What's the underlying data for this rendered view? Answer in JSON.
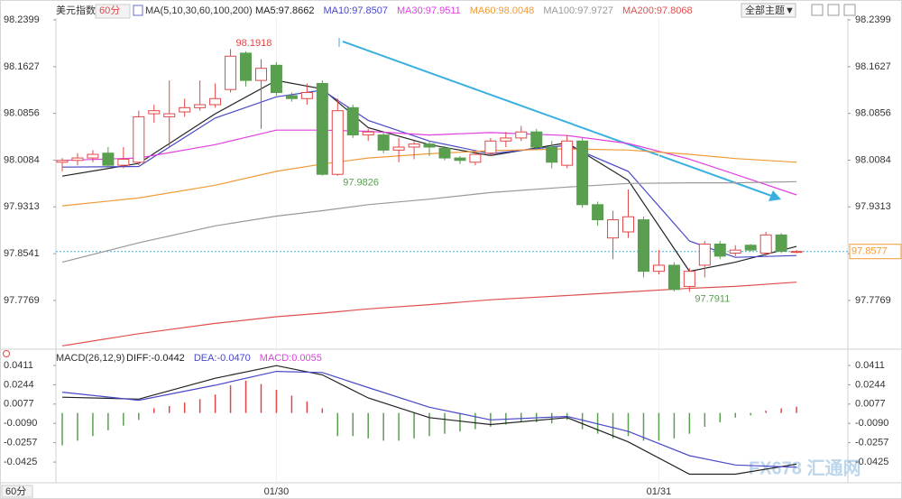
{
  "header": {
    "symbol": "美元指数",
    "period": "60分",
    "theme_button": "全部主题▼"
  },
  "footer_period": "60分",
  "watermark": "FX678 汇通网",
  "chart_data": [
    {
      "type": "candlestick",
      "ma_title": "MA(5,10,30,60,100,200)",
      "categories": [
        null,
        null,
        null,
        null,
        null,
        null,
        null,
        null,
        null,
        null,
        null,
        null,
        null,
        null,
        "01/30",
        null,
        null,
        null,
        null,
        null,
        null,
        null,
        null,
        null,
        null,
        null,
        null,
        null,
        null,
        null,
        null,
        null,
        null,
        null,
        null,
        null,
        null,
        null,
        null,
        "01/31",
        null,
        null,
        null,
        null,
        null,
        null,
        null,
        null,
        null
      ],
      "open": [
        98.005,
        98.008,
        98.012,
        98.02,
        98.0,
        98.005,
        98.085,
        98.08,
        98.088,
        98.095,
        98.1,
        98.125,
        98.185,
        98.14,
        98.165,
        98.115,
        98.11,
        98.135,
        97.985,
        98.095,
        98.05,
        98.05,
        98.025,
        98.03,
        98.035,
        98.028,
        98.012,
        98.005,
        98.02,
        98.04,
        98.045,
        98.055,
        98.03,
        98.0,
        98.04,
        97.935,
        97.88,
        97.89,
        97.91,
        97.825,
        97.835,
        97.8,
        97.835,
        97.87,
        97.855,
        97.868,
        97.855,
        97.885,
        97.857
      ],
      "high": [
        98.012,
        98.02,
        98.025,
        98.03,
        98.03,
        98.09,
        98.1,
        98.14,
        98.11,
        98.14,
        98.135,
        98.1918,
        98.188,
        98.175,
        98.17,
        98.12,
        98.135,
        98.14,
        98.11,
        98.1,
        98.06,
        98.055,
        98.045,
        98.04,
        98.04,
        98.032,
        98.015,
        98.022,
        98.045,
        98.055,
        98.065,
        98.06,
        98.04,
        98.05,
        98.045,
        97.94,
        97.925,
        97.96,
        97.915,
        97.86,
        97.84,
        97.83,
        97.875,
        97.875,
        97.868,
        97.87,
        97.89,
        97.888,
        97.86
      ],
      "low": [
        97.99,
        98.0,
        98.005,
        97.995,
        97.995,
        98.0,
        98.07,
        98.03,
        98.08,
        98.09,
        98.095,
        98.12,
        98.13,
        98.06,
        98.115,
        98.105,
        98.1,
        97.983,
        97.9826,
        98.045,
        98.04,
        98.02,
        98.005,
        98.01,
        98.015,
        98.008,
        98.002,
        98.0,
        98.015,
        98.03,
        98.04,
        98.025,
        97.995,
        97.995,
        97.93,
        97.9,
        97.845,
        97.88,
        97.815,
        97.82,
        97.792,
        97.7911,
        97.815,
        97.845,
        97.85,
        97.858,
        97.85,
        97.855,
        97.855
      ],
      "close": [
        98.008,
        98.012,
        98.018,
        98.0,
        98.01,
        98.08,
        98.09,
        98.085,
        98.095,
        98.1,
        98.11,
        98.18,
        98.14,
        98.16,
        98.12,
        98.11,
        98.12,
        97.985,
        98.09,
        98.05,
        98.055,
        98.025,
        98.03,
        98.035,
        98.03,
        98.012,
        98.008,
        98.018,
        98.04,
        98.045,
        98.055,
        98.03,
        98.005,
        98.04,
        97.935,
        97.91,
        97.91,
        97.915,
        97.825,
        97.835,
        97.795,
        97.825,
        97.87,
        97.85,
        97.86,
        97.86,
        97.885,
        97.858,
        97.8577
      ],
      "up_color": "#e04848",
      "down_color": "#5a9e50",
      "ylim": [
        97.6994,
        98.2608
      ],
      "yticks": [
        98.2399,
        98.1627,
        98.0856,
        98.0084,
        97.9313,
        97.8541,
        97.7769
      ],
      "series": [
        {
          "name": "MA5:97.8662",
          "color": "#222222",
          "x": [
            0,
            5,
            10,
            14,
            17,
            20,
            24,
            28,
            33,
            37,
            41,
            44,
            48
          ],
          "values": [
            97.982,
            98.003,
            98.085,
            98.14,
            98.126,
            98.062,
            98.034,
            98.016,
            98.037,
            97.975,
            97.825,
            97.84,
            97.866
          ]
        },
        {
          "name": "MA10:97.8507",
          "color": "#4848c8",
          "x": [
            0,
            5,
            10,
            14,
            17,
            20,
            24,
            28,
            33,
            37,
            41,
            44,
            48
          ],
          "values": [
            97.997,
            97.998,
            98.078,
            98.113,
            98.124,
            98.074,
            98.04,
            98.019,
            98.033,
            97.99,
            97.875,
            97.848,
            97.851
          ]
        },
        {
          "name": "MA30:97.9511",
          "color": "#e040e0",
          "x": [
            0,
            5,
            10,
            14,
            17,
            20,
            24,
            28,
            33,
            37,
            41,
            44,
            48
          ],
          "values": [
            98.008,
            98.012,
            98.034,
            98.058,
            98.058,
            98.056,
            98.05,
            98.054,
            98.049,
            98.036,
            98.01,
            97.985,
            97.951
          ]
        },
        {
          "name": "MA60:98.0048",
          "color": "#f09a38",
          "x": [
            0,
            5,
            10,
            14,
            17,
            20,
            24,
            28,
            33,
            37,
            41,
            44,
            48
          ],
          "values": [
            97.933,
            97.946,
            97.967,
            97.99,
            98.002,
            98.012,
            98.019,
            98.024,
            98.027,
            98.025,
            98.018,
            98.011,
            98.005
          ]
        },
        {
          "name": "MA100:97.9727",
          "color": "#999999",
          "x": [
            0,
            5,
            10,
            14,
            17,
            20,
            24,
            28,
            33,
            37,
            41,
            44,
            48
          ],
          "values": [
            97.84,
            97.872,
            97.9,
            97.916,
            97.925,
            97.935,
            97.944,
            97.955,
            97.964,
            97.97,
            97.971,
            97.971,
            97.973
          ]
        },
        {
          "name": "MA200:97.8068",
          "color": "#e05050",
          "x": [
            0,
            5,
            10,
            14,
            17,
            20,
            24,
            28,
            33,
            37,
            41,
            44,
            48
          ],
          "values": [
            97.702,
            97.722,
            97.739,
            97.75,
            97.756,
            97.763,
            97.77,
            97.778,
            97.785,
            97.791,
            97.797,
            97.8,
            97.807
          ]
        }
      ],
      "annotations": [
        {
          "x": 11,
          "value": 98.1918,
          "color": "#e04848"
        },
        {
          "x": 18,
          "value": 97.9826,
          "color": "#5a9e50"
        },
        {
          "x": 41,
          "value": 97.7911,
          "color": "#5a9e50"
        }
      ],
      "last_price": 97.8577
    },
    {
      "type": "macd",
      "title": "MACD(26,12,9)",
      "ylim": [
        -0.0604,
        0.0505
      ],
      "yticks": [
        0.0411,
        0.0244,
        0.0077,
        {
          "value": -0.009,
          "label": "-0.0090"
        },
        -0.0257,
        -0.0425
      ],
      "up_color": "#e04848",
      "down_color": "#5a9e50",
      "histogram": {
        "name": "MACD:0.0055",
        "color": "#e040e0",
        "values": [
          -0.028,
          -0.024,
          -0.02,
          -0.015,
          -0.011,
          -0.006,
          0.004,
          0.006,
          0.009,
          0.012,
          0.016,
          0.024,
          0.028,
          0.025,
          0.02,
          0.015,
          0.01,
          0.004,
          -0.02,
          -0.02,
          -0.022,
          -0.024,
          -0.024,
          -0.022,
          -0.02,
          -0.018,
          -0.016,
          -0.014,
          -0.012,
          -0.01,
          -0.008,
          -0.008,
          -0.009,
          -0.006,
          -0.014,
          -0.018,
          -0.022,
          -0.02,
          -0.024,
          -0.024,
          -0.022,
          -0.018,
          -0.012,
          -0.008,
          -0.004,
          -0.002,
          0.002,
          0.004,
          0.0055
        ]
      },
      "series": [
        {
          "name": "DIFF:-0.0442",
          "color": "#222222",
          "x": [
            0,
            5,
            10,
            14,
            17,
            20,
            24,
            28,
            33,
            37,
            41,
            44,
            48
          ],
          "values": [
            0.0136,
            0.012,
            0.03,
            0.041,
            0.033,
            0.013,
            -0.004,
            -0.01,
            -0.004,
            -0.025,
            -0.053,
            -0.053,
            -0.0442
          ]
        },
        {
          "name": "DEA:-0.0470",
          "color": "#4848c8",
          "x": [
            0,
            5,
            10,
            14,
            17,
            20,
            24,
            28,
            33,
            37,
            41,
            44,
            48
          ],
          "values": [
            0.018,
            0.011,
            0.024,
            0.036,
            0.035,
            0.022,
            0.005,
            -0.006,
            -0.003,
            -0.016,
            -0.037,
            -0.045,
            -0.047
          ]
        }
      ]
    }
  ]
}
